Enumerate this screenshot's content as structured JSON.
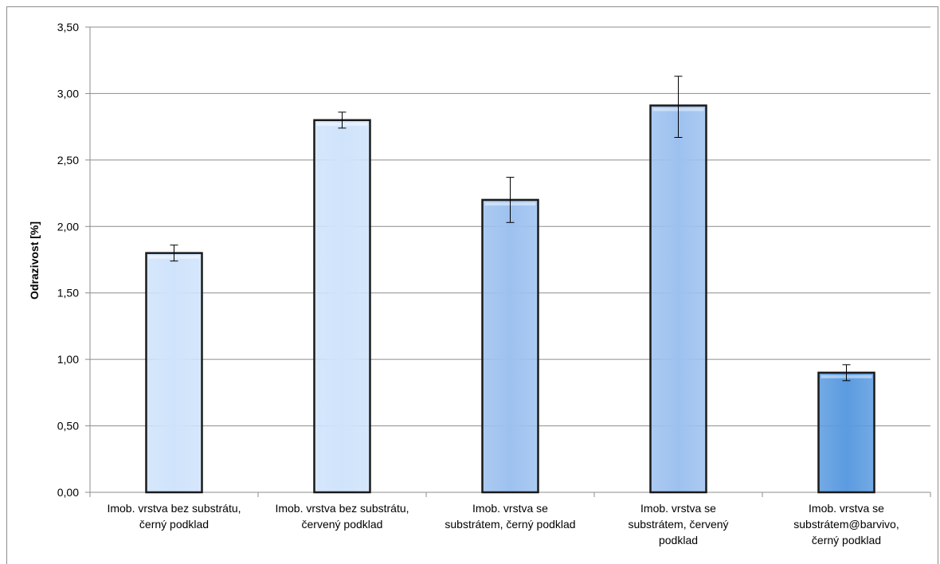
{
  "chart_data": {
    "type": "bar",
    "title": "",
    "xlabel": "",
    "ylabel": "Odrazivost  [%]",
    "ylim": [
      0,
      3.5
    ],
    "y_ticks": [
      "0,00",
      "0,50",
      "1,00",
      "1,50",
      "2,00",
      "2,50",
      "3,00",
      "3,50"
    ],
    "y_tick_values": [
      0,
      0.5,
      1.0,
      1.5,
      2.0,
      2.5,
      3.0,
      3.5
    ],
    "grid": "horizontal",
    "categories": [
      [
        "Imob. vrstva bez substrátu,",
        "černý podklad"
      ],
      [
        "Imob. vrstva bez substrátu,",
        "červený podklad"
      ],
      [
        "Imob. vrstva se",
        "substrátem, černý podklad"
      ],
      [
        "Imob. vrstva se",
        "substrátem, červený",
        "podklad"
      ],
      [
        "Imob. vrstva se",
        "substrátem@barvivo,",
        "černý podklad"
      ]
    ],
    "values": [
      1.8,
      2.8,
      2.2,
      2.91,
      0.9
    ],
    "error_low": [
      1.74,
      2.74,
      2.03,
      2.67,
      0.84
    ],
    "error_high": [
      1.86,
      2.86,
      2.37,
      3.13,
      0.96
    ],
    "colors": [
      "#cfe3fb",
      "#cfe3fb",
      "#9dc1ef",
      "#9dc1ef",
      "#5b9be0"
    ]
  }
}
